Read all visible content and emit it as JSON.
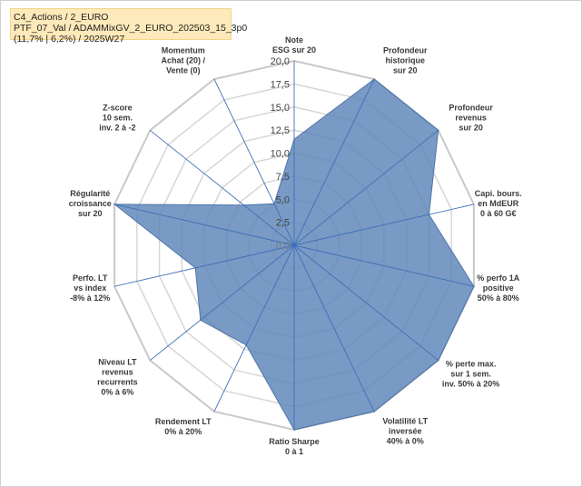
{
  "info": {
    "line1": "C4_Actions / 2_EURO",
    "line2": "PTF_07_Val / ADAMMixGV_2_EURO_202503_15_3p0",
    "line3": "(11,7% | 6,2%) / 2025W27"
  },
  "chart_data": {
    "type": "radar",
    "title": "",
    "axes": [
      {
        "lines": [
          "Note",
          "ESG sur 20"
        ]
      },
      {
        "lines": [
          "Profondeur",
          "historique",
          "sur 20"
        ]
      },
      {
        "lines": [
          "Profondeur",
          "revenus",
          "sur 20"
        ]
      },
      {
        "lines": [
          "Capi. bours.",
          "en MdEUR",
          "0 à 60 G€"
        ]
      },
      {
        "lines": [
          "% perfo 1A",
          "positive",
          "50% à 80%"
        ]
      },
      {
        "lines": [
          "% perte max.",
          "sur 1 sem.",
          "inv. 50% à 20%"
        ]
      },
      {
        "lines": [
          "Volatilité LT",
          "inversée",
          "40% à 0%"
        ]
      },
      {
        "lines": [
          "Ratio Sharpe",
          "0 à 1"
        ]
      },
      {
        "lines": [
          "Rendement LT",
          "0% à 20%"
        ]
      },
      {
        "lines": [
          "Niveau LT",
          "revenus",
          "recurrents",
          "0% à 6%"
        ]
      },
      {
        "lines": [
          "Perfo. LT",
          "vs index",
          "-8% à 12%"
        ]
      },
      {
        "lines": [
          "Régularité",
          "croissance",
          "sur 20"
        ]
      },
      {
        "lines": [
          "Z-score",
          "10 sem.",
          "inv. 2 à -2"
        ]
      },
      {
        "lines": [
          "Momentum",
          "Achat (20) /",
          "Vente (0)"
        ],
        "first_line_muted": true
      }
    ],
    "series": [
      {
        "values": [
          11.5,
          20,
          20,
          15,
          20,
          20,
          20,
          20,
          12,
          13,
          11,
          20,
          7,
          5
        ],
        "color": "#5b84b8",
        "fill_opacity": 0.82
      }
    ],
    "ticks": [
      "0,0",
      "2,5",
      "5,0",
      "7,5",
      "10,0",
      "12,5",
      "15,0",
      "17,5",
      "20,0"
    ],
    "rmin": 0,
    "rmax": 20,
    "grid": true
  }
}
